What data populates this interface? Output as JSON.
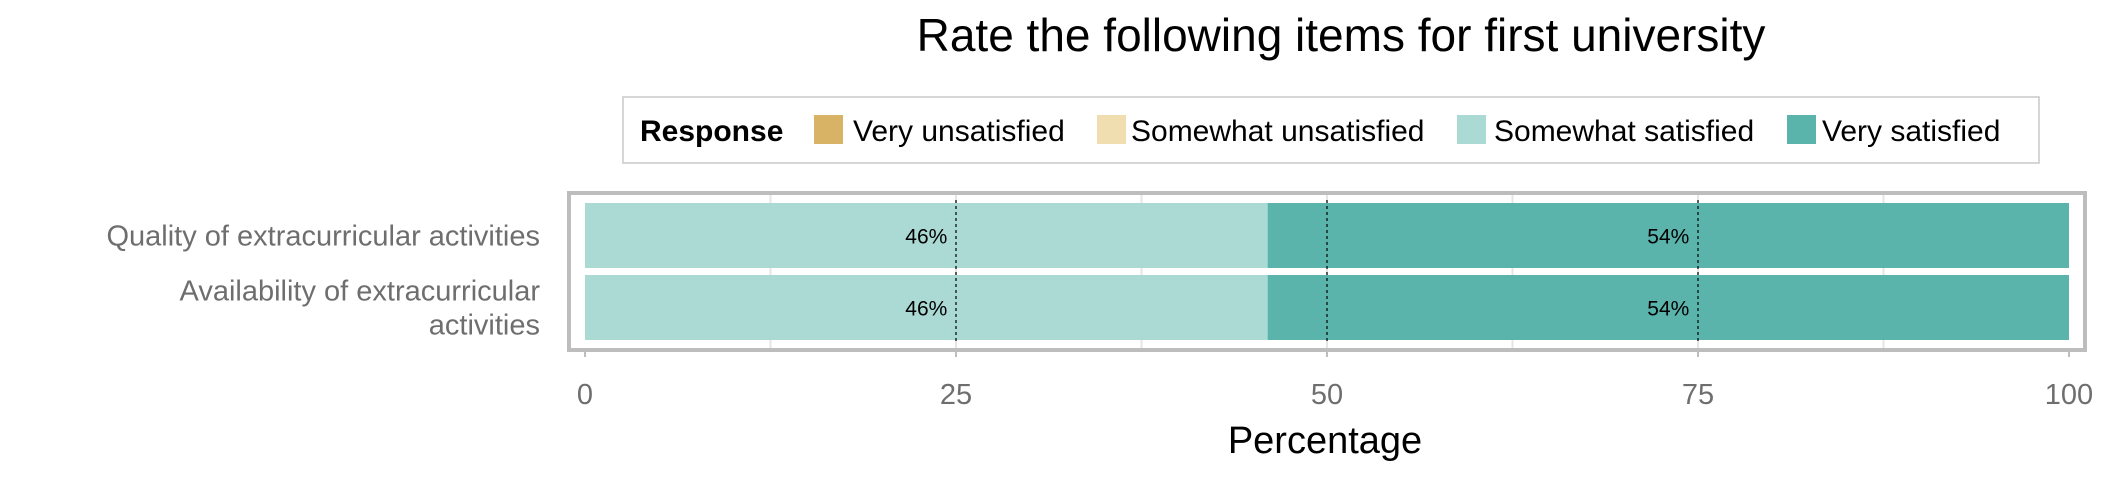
{
  "chart_data": {
    "type": "bar",
    "orientation": "horizontal",
    "stacked": true,
    "title": "Rate the following items for first university",
    "xlabel": "Percentage",
    "ylabel": "",
    "xlim": [
      0,
      100
    ],
    "xticks": [
      0,
      25,
      50,
      75,
      100
    ],
    "grid": true,
    "legend": {
      "title": "Response",
      "position": "top",
      "entries": [
        "Very unsatisfied",
        "Somewhat unsatisfied",
        "Somewhat satisfied",
        "Very satisfied"
      ]
    },
    "categories": [
      [
        "Quality of extracurricular activities"
      ],
      [
        "Availability of extracurricular",
        "activities"
      ]
    ],
    "series": [
      {
        "name": "Very unsatisfied",
        "color": "#D8B365",
        "values": [
          0,
          0
        ]
      },
      {
        "name": "Somewhat unsatisfied",
        "color": "#F0DDB0",
        "values": [
          0,
          0
        ]
      },
      {
        "name": "Somewhat satisfied",
        "color": "#ABD9D4",
        "values": [
          46,
          46
        ],
        "labels": [
          "46%",
          "46%"
        ]
      },
      {
        "name": "Very satisfied",
        "color": "#5AB4AC",
        "values": [
          54,
          54
        ],
        "labels": [
          "54%",
          "54%"
        ]
      }
    ],
    "reference_lines": [
      25,
      50,
      75
    ]
  }
}
